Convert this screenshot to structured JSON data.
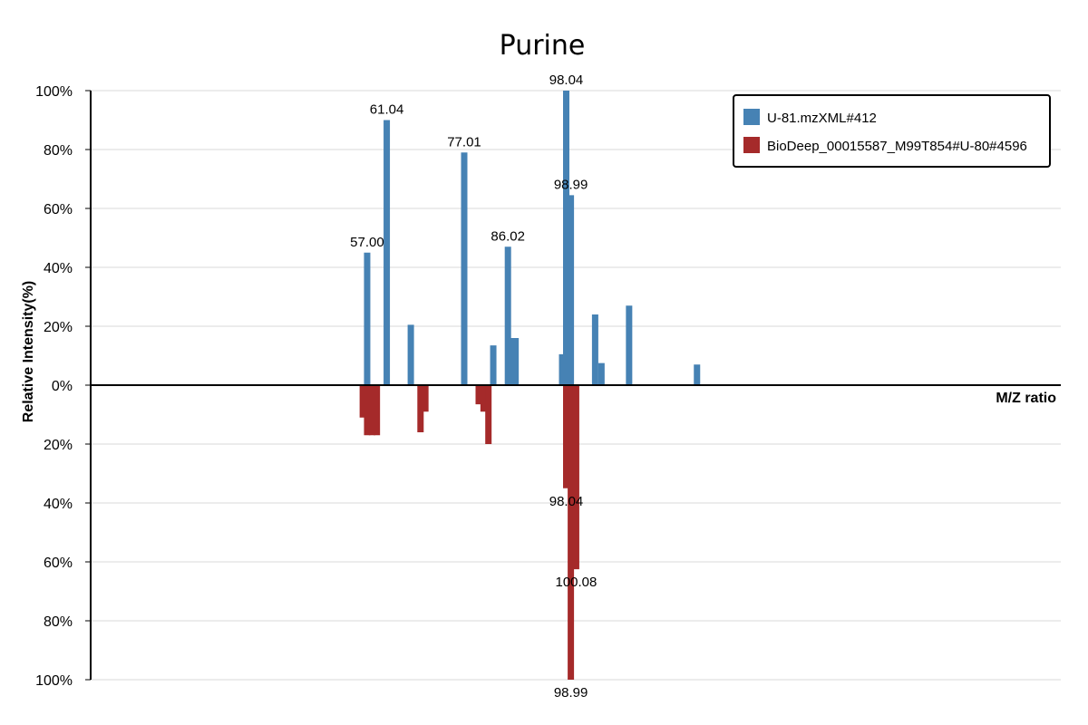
{
  "chart_data": {
    "type": "bar",
    "title": "Purine",
    "xlabel": "M/Z ratio",
    "ylabel": "Relative Intensity(%)",
    "y_tick_labels_top": [
      "100%",
      "80%",
      "60%",
      "40%",
      "20%",
      "0%"
    ],
    "y_tick_labels_bottom": [
      "20%",
      "40%",
      "60%",
      "80%",
      "100%"
    ],
    "ylim": [
      -100,
      100
    ],
    "grid": true,
    "legend_position": "top-right",
    "series": [
      {
        "name": "U-81.mzXML#412",
        "color": "#4682b4",
        "direction": "up",
        "peaks": [
          {
            "mz": 57.0,
            "intensity": 45,
            "label": "57.00"
          },
          {
            "mz": 61.04,
            "intensity": 90,
            "label": "61.04"
          },
          {
            "mz": 66.0,
            "intensity": 20.5
          },
          {
            "mz": 77.01,
            "intensity": 79,
            "label": "77.01"
          },
          {
            "mz": 83.0,
            "intensity": 13.5
          },
          {
            "mz": 86.02,
            "intensity": 47,
            "label": "86.02"
          },
          {
            "mz": 87.0,
            "intensity": 16
          },
          {
            "mz": 87.6,
            "intensity": 16
          },
          {
            "mz": 97.2,
            "intensity": 10.5
          },
          {
            "mz": 98.04,
            "intensity": 100,
            "label": "98.04"
          },
          {
            "mz": 98.99,
            "intensity": 64.5,
            "label": "98.99"
          },
          {
            "mz": 104.0,
            "intensity": 24
          },
          {
            "mz": 105.3,
            "intensity": 7.5
          },
          {
            "mz": 111.0,
            "intensity": 27
          },
          {
            "mz": 125.0,
            "intensity": 7
          }
        ]
      },
      {
        "name": "BioDeep_00015587_M99T854#U-80#4596",
        "color": "#a52a2a",
        "direction": "down",
        "peaks": [
          {
            "mz": 56.1,
            "intensity": 11
          },
          {
            "mz": 57.0,
            "intensity": 17
          },
          {
            "mz": 58.0,
            "intensity": 17
          },
          {
            "mz": 59.0,
            "intensity": 17
          },
          {
            "mz": 68.0,
            "intensity": 16
          },
          {
            "mz": 69.0,
            "intensity": 9
          },
          {
            "mz": 80.0,
            "intensity": 6.5
          },
          {
            "mz": 81.0,
            "intensity": 9
          },
          {
            "mz": 82.0,
            "intensity": 20
          },
          {
            "mz": 98.04,
            "intensity": 35,
            "label": "98.04"
          },
          {
            "mz": 98.99,
            "intensity": 100,
            "label": "98.99"
          },
          {
            "mz": 100.08,
            "intensity": 62.5,
            "label": "100.08"
          }
        ]
      }
    ]
  }
}
